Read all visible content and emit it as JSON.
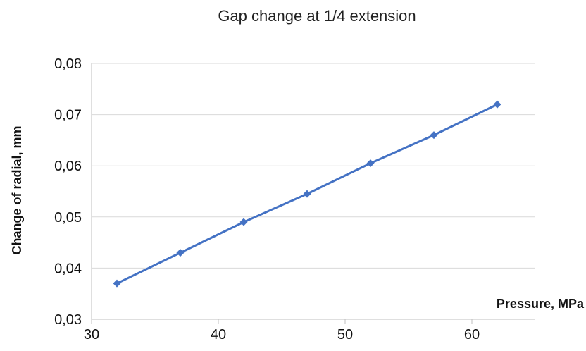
{
  "chart_data": {
    "type": "line",
    "title": "Gap change at 1/4 extension",
    "xlabel": "Pressure, MPa",
    "ylabel": "Change of radial, mm",
    "xlim": [
      30,
      65
    ],
    "ylim": [
      0.03,
      0.08
    ],
    "x_ticks": [
      "30",
      "40",
      "50",
      "60"
    ],
    "y_ticks": [
      "0,03",
      "0,04",
      "0,05",
      "0,06",
      "0,07",
      "0,08"
    ],
    "grid": true,
    "series": [
      {
        "x": [
          32,
          37,
          42,
          47,
          52,
          57,
          62
        ],
        "values": [
          0.037,
          0.043,
          0.049,
          0.0545,
          0.0605,
          0.066,
          0.072
        ],
        "color": "#4472C4",
        "marker": "diamond"
      }
    ]
  }
}
